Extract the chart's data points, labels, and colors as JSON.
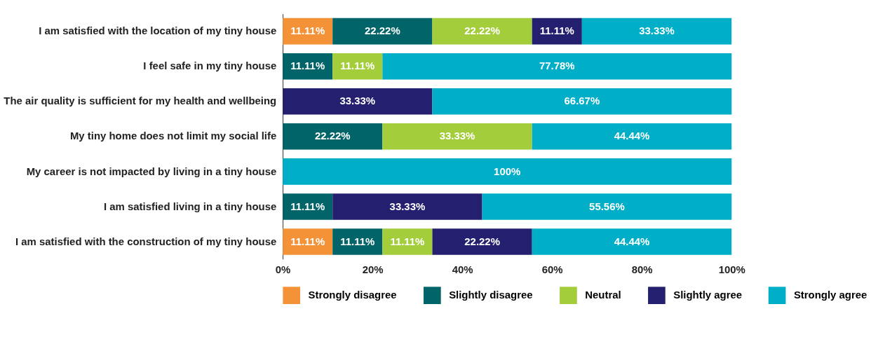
{
  "chart_data": {
    "type": "bar",
    "orientation": "horizontal",
    "stacked": true,
    "legend": "bottom",
    "grid": false,
    "categories": [
      "I am satisfied with the location of my tiny house",
      "I feel safe in my tiny house",
      "The air quality is sufficient for my health and wellbeing",
      "My tiny home does not limit my social life",
      "My career is not impacted by living in a tiny house",
      "I am satisfied living in a tiny house",
      "I am satisfied with the construction of my tiny house"
    ],
    "xlim": [
      0,
      100
    ],
    "xticks": [
      {
        "value": 0,
        "label": "0%"
      },
      {
        "value": 20,
        "label": "20%"
      },
      {
        "value": 40,
        "label": "40%"
      },
      {
        "value": 60,
        "label": "60%"
      },
      {
        "value": 80,
        "label": "80%"
      },
      {
        "value": 100,
        "label": "100%"
      }
    ],
    "series": [
      {
        "name": "Strongly disagree",
        "color": "#f39237",
        "values": [
          11.11,
          null,
          null,
          null,
          null,
          null,
          11.11
        ],
        "value_labels": [
          "11.11%",
          null,
          null,
          null,
          null,
          null,
          "11.11%"
        ]
      },
      {
        "name": "Slightly disagree",
        "color": "#006468",
        "values": [
          22.22,
          11.11,
          null,
          22.22,
          null,
          11.11,
          11.11
        ],
        "value_labels": [
          "22.22%",
          "11.11%",
          null,
          "22.22%",
          null,
          "11.11%",
          "11.11%"
        ]
      },
      {
        "name": "Neutral",
        "color": "#a4cd3c",
        "values": [
          22.22,
          11.11,
          null,
          33.33,
          null,
          null,
          11.11
        ],
        "value_labels": [
          "22.22%",
          "11.11%",
          null,
          "33.33%",
          null,
          null,
          "11.11%"
        ]
      },
      {
        "name": "Slightly agree",
        "color": "#24206f",
        "values": [
          11.11,
          null,
          33.33,
          null,
          null,
          33.33,
          22.22
        ],
        "value_labels": [
          "11.11%",
          null,
          "33.33%",
          null,
          null,
          "33.33%",
          "22.22%"
        ]
      },
      {
        "name": "Strongly agree",
        "color": "#00aec7",
        "values": [
          33.33,
          77.78,
          66.67,
          44.44,
          100,
          55.56,
          44.44
        ],
        "value_labels": [
          "33.33%",
          "77.78%",
          "66.67%",
          "44.44%",
          "100%",
          "55.56%",
          "44.44%"
        ]
      }
    ]
  }
}
